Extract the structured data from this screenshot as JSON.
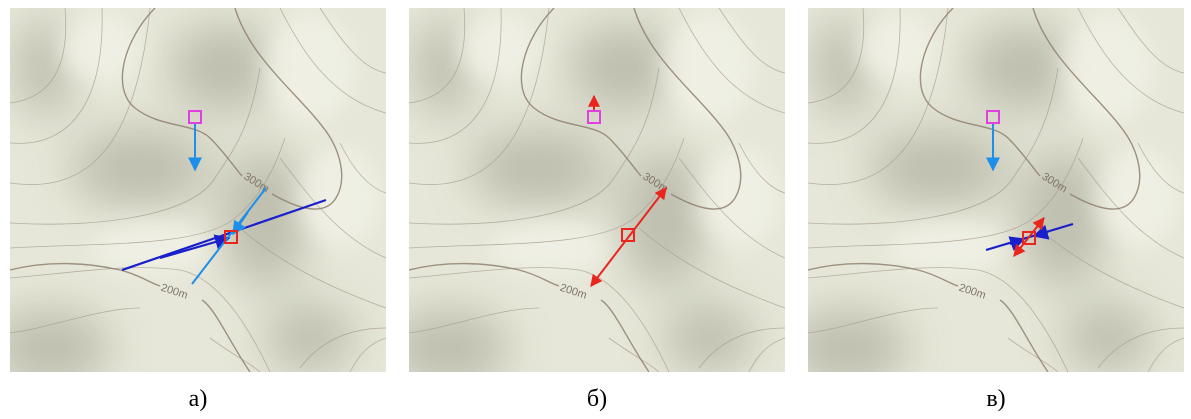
{
  "colors": {
    "terrain": "#e6e7d8",
    "shade": "#b9baaa",
    "contour_minor": "#a79c8d",
    "contour_major": "#8f8070",
    "contour_label": "#7f7468",
    "marker_magenta": "#e23fe0",
    "marker_red": "#e8261e",
    "arrow_light_blue": "#1d8fe8",
    "arrow_dark_blue": "#1a1fcc",
    "arrow_red": "#e8261e"
  },
  "contour_labels": {
    "major_upper": "300m",
    "major_lower": "200m"
  },
  "panels": [
    {
      "caption": "а)",
      "icons": [
        "magenta-square-marker",
        "red-square-marker",
        "light-blue-arrow",
        "dark-blue-line"
      ]
    },
    {
      "caption": "б)",
      "icons": [
        "magenta-square-marker",
        "red-square-marker",
        "red-double-arrow"
      ]
    },
    {
      "caption": "в)",
      "icons": [
        "magenta-square-marker",
        "red-square-marker",
        "light-blue-arrow",
        "dark-blue-line",
        "red-double-arrow"
      ]
    }
  ]
}
